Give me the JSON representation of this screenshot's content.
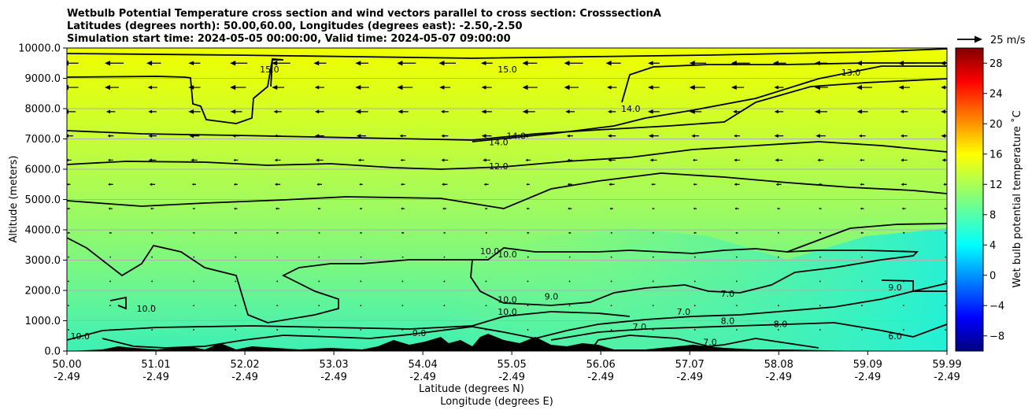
{
  "chart_data": {
    "type": "heatmap",
    "title_lines": [
      "Wetbulb Potential Temperature cross section and wind vectors parallel to cross section: CrosssectionA",
      "Latitudes (degrees north): 50.00,60.00, Longitudes (degrees east): -2.50,-2.50",
      "Simulation start time: 2024-05-05 00:00:00, Valid time: 2024-05-07 09:00:00"
    ],
    "xlabel_lat": "Latitude (degrees N)",
    "xlabel_lon": "Longitude (degrees E)",
    "ylabel": "Altitude (meters)",
    "x_ticks": [
      {
        "lat": "50.00",
        "lon": "-2.49",
        "value": 50.0
      },
      {
        "lat": "51.01",
        "lon": "-2.49",
        "value": 51.01
      },
      {
        "lat": "52.02",
        "lon": "-2.49",
        "value": 52.02
      },
      {
        "lat": "53.03",
        "lon": "-2.49",
        "value": 53.03
      },
      {
        "lat": "54.04",
        "lon": "-2.49",
        "value": 54.04
      },
      {
        "lat": "55.05",
        "lon": "-2.49",
        "value": 55.05
      },
      {
        "lat": "56.06",
        "lon": "-2.49",
        "value": 56.06
      },
      {
        "lat": "57.07",
        "lon": "-2.49",
        "value": 57.07
      },
      {
        "lat": "58.08",
        "lon": "-2.49",
        "value": 58.08
      },
      {
        "lat": "59.09",
        "lon": "-2.49",
        "value": 59.09
      },
      {
        "lat": "59.99",
        "lon": "-2.49",
        "value": 59.99
      }
    ],
    "xlim": [
      50.0,
      59.99
    ],
    "y_ticks": [
      "0.0",
      "1000.0",
      "2000.0",
      "3000.0",
      "4000.0",
      "5000.0",
      "6000.0",
      "7000.0",
      "8000.0",
      "9000.0",
      "10000.0"
    ],
    "ylim": [
      0,
      10000
    ],
    "grid": "horizontal lines at y ticks",
    "colorbar": {
      "label": "Wet bulb potential temperature ˚C",
      "range": [
        -10,
        30
      ],
      "ticks": [
        "−8",
        "−4",
        "0",
        "4",
        "8",
        "12",
        "16",
        "20",
        "24",
        "28"
      ],
      "tick_values": [
        -8,
        -4,
        0,
        4,
        8,
        12,
        16,
        20,
        24,
        28
      ],
      "colormap": "jet"
    },
    "quiver_key": {
      "label": "25 m/s",
      "speed": 25
    },
    "wind": "vectors pointing toward decreasing latitude (southward), strongest near 9000-10000 m",
    "contour_levels_labeled": [
      {
        "text": "15.0",
        "lat": 52.3,
        "alt": 9300
      },
      {
        "text": "15.0",
        "lat": 55.0,
        "alt": 9300
      },
      {
        "text": "13.0",
        "lat": 58.9,
        "alt": 9200
      },
      {
        "text": "14.0",
        "lat": 56.4,
        "alt": 8000
      },
      {
        "text": "14.0",
        "lat": 55.1,
        "alt": 7100
      },
      {
        "text": "14.0",
        "lat": 54.9,
        "alt": 6900
      },
      {
        "text": "12.0",
        "lat": 54.9,
        "alt": 6100
      },
      {
        "text": "10.0",
        "lat": 54.8,
        "alt": 3300
      },
      {
        "text": "10.0",
        "lat": 55.0,
        "alt": 3200
      },
      {
        "text": "10.0",
        "lat": 55.0,
        "alt": 1700
      },
      {
        "text": "10.0",
        "lat": 55.0,
        "alt": 1300
      },
      {
        "text": "9.0",
        "lat": 55.5,
        "alt": 1800
      },
      {
        "text": "10.0",
        "lat": 50.9,
        "alt": 1400
      },
      {
        "text": "10.0",
        "lat": 50.15,
        "alt": 500
      },
      {
        "text": "9.0",
        "lat": 54.0,
        "alt": 600
      },
      {
        "text": "9.0",
        "lat": 59.4,
        "alt": 2100
      },
      {
        "text": "8.0",
        "lat": 58.1,
        "alt": 900
      },
      {
        "text": "7.0",
        "lat": 57.5,
        "alt": 1900
      },
      {
        "text": "7.0",
        "lat": 57.0,
        "alt": 1300
      },
      {
        "text": "8.0",
        "lat": 57.5,
        "alt": 1000
      },
      {
        "text": "7.0",
        "lat": 57.3,
        "alt": 300
      },
      {
        "text": "6.0",
        "lat": 59.4,
        "alt": 500
      },
      {
        "text": "7.0",
        "lat": 56.5,
        "alt": 800
      }
    ]
  }
}
